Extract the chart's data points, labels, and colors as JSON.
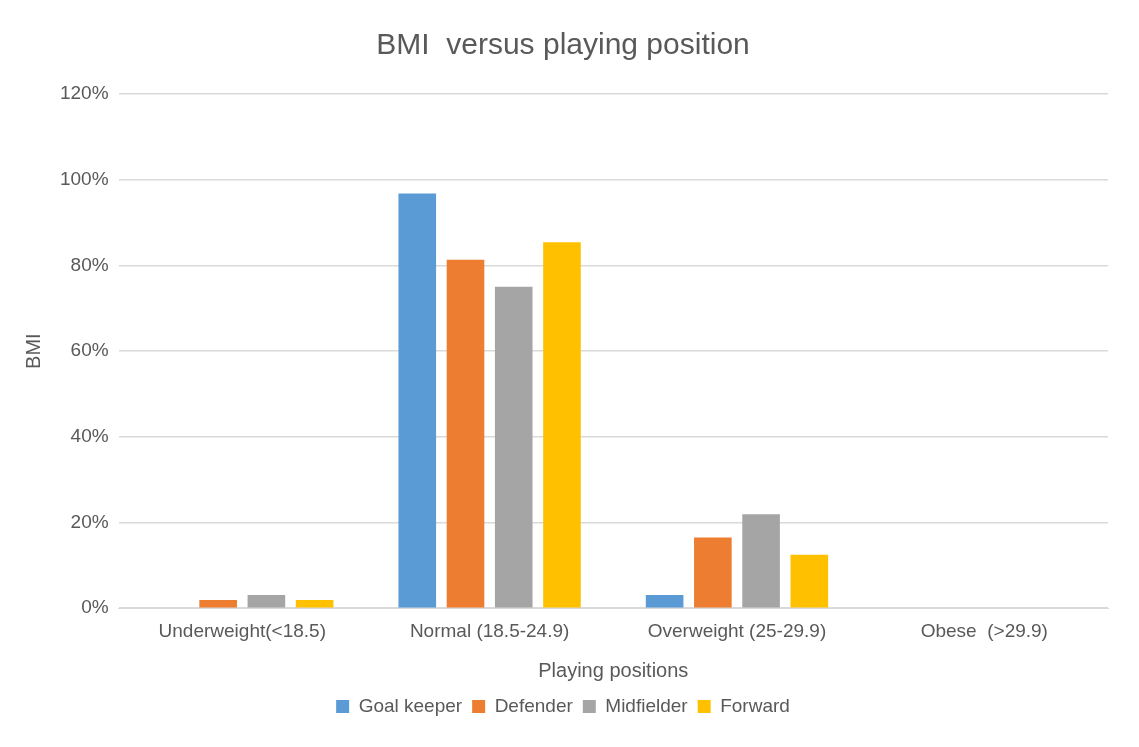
{
  "chart_data": {
    "type": "bar",
    "title": "BMI  versus playing position",
    "xlabel": "Playing positions",
    "ylabel": "BMI",
    "categories": [
      "Underweight(<18.5)",
      "Normal (18.5-24.9)",
      "Overweight (25-29.9)",
      "Obese  (>29.9)"
    ],
    "series": [
      {
        "name": "Goal keeper",
        "color": "#5b9bd5",
        "values": [
          0,
          96.8,
          3.1,
          0
        ]
      },
      {
        "name": "Defender",
        "color": "#ed7d31",
        "values": [
          1.9,
          81.3,
          16.5,
          0
        ]
      },
      {
        "name": "Midfielder",
        "color": "#a5a5a5",
        "values": [
          3.1,
          75,
          21.9,
          0
        ]
      },
      {
        "name": "Forward",
        "color": "#ffc000",
        "values": [
          1.9,
          85.4,
          12.5,
          0
        ]
      }
    ],
    "ylim": [
      0,
      120
    ],
    "yticks": [
      {
        "value": 0,
        "label": "0%"
      },
      {
        "value": 20,
        "label": "20%"
      },
      {
        "value": 40,
        "label": "40%"
      },
      {
        "value": 60,
        "label": "60%"
      },
      {
        "value": 80,
        "label": "80%"
      },
      {
        "value": 100,
        "label": "100%"
      },
      {
        "value": 120,
        "label": "120%"
      }
    ],
    "grid": "y",
    "legend": "bottom"
  }
}
